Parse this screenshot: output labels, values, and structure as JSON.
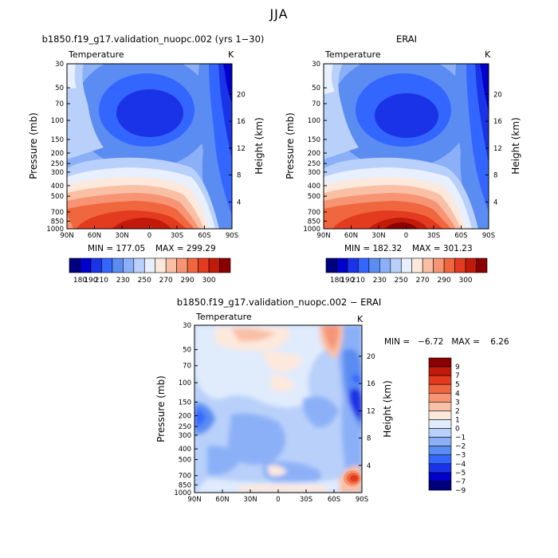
{
  "page": {
    "season": "JJA"
  },
  "charts": [
    {
      "title": "b1850.f19_g17.validation_nuopc.002 (yrs 1−30)",
      "subtitle_left": "Temperature",
      "subtitle_right": "K",
      "ylabel": "Pressure (mb)",
      "ylabel_right": "Height (km)",
      "min_label": "MIN = 177.05",
      "max_label": "MAX = 299.29"
    },
    {
      "title": "ERAI",
      "subtitle_left": "Temperature",
      "subtitle_right": "K",
      "ylabel": "Pressure (mb)",
      "ylabel_right": "Height (km)",
      "min_label": "MIN = 182.32",
      "max_label": "MAX = 301.23"
    },
    {
      "title": "b1850.f19_g17.validation_nuopc.002 − ERAI",
      "subtitle_left": "Temperature",
      "subtitle_right": "K",
      "ylabel": "Pressure (mb)",
      "ylabel_right": "Height (km)",
      "minmax_label": "MIN =   −6.72   MAX =    6.26"
    }
  ],
  "axes": {
    "x_ticks": [
      "90N",
      "60N",
      "30N",
      "0",
      "30S",
      "60S",
      "90S"
    ],
    "y_ticks": [
      "30",
      "50",
      "70",
      "100",
      "150",
      "200",
      "250",
      "300",
      "400",
      "500",
      "700",
      "850",
      "1000"
    ],
    "y_ticks_right": [
      "20",
      "16",
      "12",
      "8",
      "4"
    ]
  },
  "colors": {
    "abs_scale": [
      "#00007f",
      "#0000cc",
      "#1a33e6",
      "#3366ff",
      "#5a8cf2",
      "#8cb0f7",
      "#b8d0fa",
      "#e8effd",
      "#fde8dc",
      "#f9c0a5",
      "#f69474",
      "#f0663f",
      "#e33b1f",
      "#c21a0a",
      "#8a0000"
    ],
    "diff_scale": [
      "#00007f",
      "#0000cc",
      "#1a33e6",
      "#3366ff",
      "#5a8cf2",
      "#8cb0f7",
      "#b8d0fa",
      "#e0ebfc",
      "#fde8dc",
      "#f9c0a5",
      "#f69474",
      "#f0663f",
      "#e33b1f",
      "#c21a0a",
      "#8a0000"
    ]
  },
  "chart_data": [
    {
      "type": "heatmap",
      "title": "b1850.f19_g17.validation_nuopc.002 (yrs 1−30)",
      "variable": "Temperature",
      "units": "K",
      "season": "JJA",
      "xlabel": "",
      "ylabel": "Pressure (mb)",
      "ylabel_right": "Height (km)",
      "x": [
        "90N",
        "60N",
        "30N",
        "0",
        "30S",
        "60S",
        "90S"
      ],
      "y_pressure_mb": [
        30,
        50,
        70,
        100,
        150,
        200,
        250,
        300,
        400,
        500,
        700,
        850,
        1000
      ],
      "y_scale": "log",
      "min": 177.05,
      "max": 299.29,
      "colorbar_levels": [
        180,
        190,
        200,
        210,
        220,
        230,
        240,
        250,
        260,
        270,
        280,
        290,
        300
      ],
      "colorbar_tick_labels": [
        "180",
        "190",
        "210",
        "230",
        "250",
        "270",
        "290",
        "300"
      ]
    },
    {
      "type": "heatmap",
      "title": "ERAI",
      "variable": "Temperature",
      "units": "K",
      "season": "JJA",
      "xlabel": "",
      "ylabel": "Pressure (mb)",
      "ylabel_right": "Height (km)",
      "x": [
        "90N",
        "60N",
        "30N",
        "0",
        "30S",
        "60S",
        "90S"
      ],
      "y_pressure_mb": [
        30,
        50,
        70,
        100,
        150,
        200,
        250,
        300,
        400,
        500,
        700,
        850,
        1000
      ],
      "y_scale": "log",
      "min": 182.32,
      "max": 301.23,
      "colorbar_levels": [
        180,
        190,
        200,
        210,
        220,
        230,
        240,
        250,
        260,
        270,
        280,
        290,
        300
      ],
      "colorbar_tick_labels": [
        "180",
        "190",
        "210",
        "230",
        "250",
        "270",
        "290",
        "300"
      ]
    },
    {
      "type": "heatmap",
      "title": "b1850.f19_g17.validation_nuopc.002 − ERAI",
      "variable": "Temperature",
      "units": "K",
      "season": "JJA",
      "xlabel": "",
      "ylabel": "Pressure (mb)",
      "ylabel_right": "Height (km)",
      "x": [
        "90N",
        "60N",
        "30N",
        "0",
        "30S",
        "60S",
        "90S"
      ],
      "y_pressure_mb": [
        30,
        50,
        70,
        100,
        150,
        200,
        250,
        300,
        400,
        500,
        700,
        850,
        1000
      ],
      "y_scale": "log",
      "min": -6.72,
      "max": 6.26,
      "colorbar_levels": [
        -9,
        -7,
        -5,
        -4,
        -3,
        -2,
        -1,
        0,
        1,
        2,
        3,
        4,
        5,
        7,
        9
      ],
      "colorbar_tick_labels": [
        "9",
        "7",
        "5",
        "4",
        "3",
        "2",
        "1",
        "0",
        "−1",
        "−2",
        "−3",
        "−4",
        "−5",
        "−7",
        "−9"
      ]
    }
  ]
}
